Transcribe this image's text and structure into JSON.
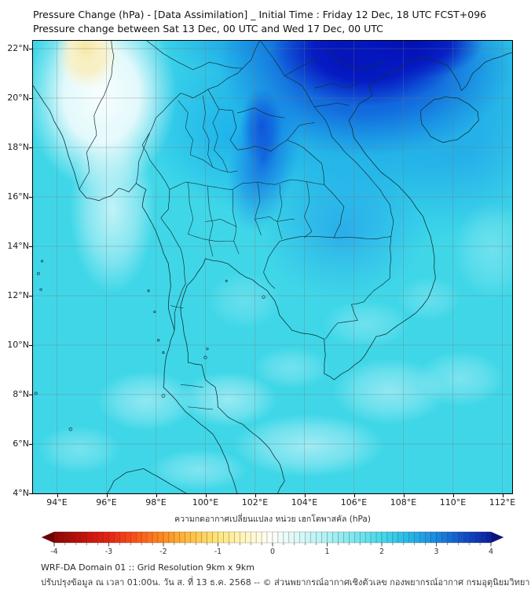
{
  "title": {
    "line1": "Pressure Change (hPa) - [Data Assimilation] _ Initial Time : Friday 12 Dec, 18 UTC FCST+096",
    "line2": "Pressure change between Sat 13 Dec, 00 UTC and Wed 17 Dec, 00 UTC"
  },
  "map": {
    "x_tick_labels": [
      "94°E",
      "96°E",
      "98°E",
      "100°E",
      "102°E",
      "104°E",
      "106°E",
      "108°E",
      "110°E",
      "112°E"
    ],
    "x_tick_values": [
      94,
      96,
      98,
      100,
      102,
      104,
      106,
      108,
      110,
      112
    ],
    "y_tick_labels": [
      "22°N",
      "20°N",
      "18°N",
      "16°N",
      "14°N",
      "12°N",
      "10°N",
      "8°N",
      "6°N",
      "4°N"
    ],
    "y_tick_values": [
      22,
      20,
      18,
      16,
      14,
      12,
      10,
      8,
      6,
      4
    ],
    "grid": "on"
  },
  "colorbar": {
    "label": "ความกดอากาศเปลี่ยนแปลง หน่วย เฮกโตพาสคัล (hPa)",
    "tick_labels": [
      "-4",
      "-3",
      "-2",
      "-1",
      "0",
      "1",
      "2",
      "3",
      "4"
    ],
    "tick_values": [
      -4,
      -3,
      -2,
      -1,
      0,
      1,
      2,
      3,
      4
    ],
    "min": -4,
    "max": 4,
    "stops": [
      [
        -4.3,
        "#700000"
      ],
      [
        -4.0,
        "#8C0606"
      ],
      [
        -3.5,
        "#BF100C"
      ],
      [
        -3.0,
        "#E62313"
      ],
      [
        -2.5,
        "#F9541B"
      ],
      [
        -2.0,
        "#FD8D1F"
      ],
      [
        -1.5,
        "#FEC044"
      ],
      [
        -1.0,
        "#FEE679"
      ],
      [
        -0.5,
        "#FFF7C0"
      ],
      [
        -0.1,
        "#FFFEF2"
      ],
      [
        0.0,
        "#FFFFFF"
      ],
      [
        0.1,
        "#F4FDFC"
      ],
      [
        0.5,
        "#D6F8F7"
      ],
      [
        1.0,
        "#AEF1F4"
      ],
      [
        1.5,
        "#7BE7EE"
      ],
      [
        2.0,
        "#45D9EA"
      ],
      [
        2.5,
        "#26B8E8"
      ],
      [
        3.0,
        "#1B8BE0"
      ],
      [
        3.5,
        "#1150C8"
      ],
      [
        4.0,
        "#0A1E9E"
      ],
      [
        4.3,
        "#071580"
      ]
    ]
  },
  "footer": {
    "line1": "WRF-DA Domain 01 :: Grid Resolution 9km x 9km",
    "line2": "ปรับปรุงข้อมูล ณ เวลา 01:00น. วัน ส. ที่ 13 ธ.ค. 2568 -- © ส่วนพยากรณ์อากาศเชิงตัวเลข กองพยากรณ์อากาศ กรมอุตุนิยมวิทยา"
  },
  "chart_data": {
    "type": "heatmap",
    "title": "Pressure change (hPa), Sat 13 Dec 00 UTC to Wed 17 Dec 00 UTC",
    "units": "hPa",
    "value_range": [
      -4,
      4
    ],
    "lon_range_deg_e": [
      93.0,
      112.5
    ],
    "lat_range_deg_n": [
      4.0,
      22.35
    ],
    "regions": [
      {
        "area": "Northern Vietnam / Gulf of Tonkin (105-109E, 20-22N)",
        "value": 4.0
      },
      {
        "area": "Northern Laos / NE Thailand tongue (102-105E, 16-20N)",
        "value": 3.0
      },
      {
        "area": "Northern Thailand (99-102E, 17-20N)",
        "value": 2.5
      },
      {
        "area": "Most of domain (sea and land background)",
        "value": 2.0
      },
      {
        "area": "Southern seas light patches (4-8N)",
        "value": 1.0
      },
      {
        "area": "White tongue west Myanmar (95-98E, 14-21N)",
        "value": 0.0
      },
      {
        "area": "Pale yellow spot (95.5-97E, 20-22N)",
        "value": -0.5
      }
    ]
  }
}
